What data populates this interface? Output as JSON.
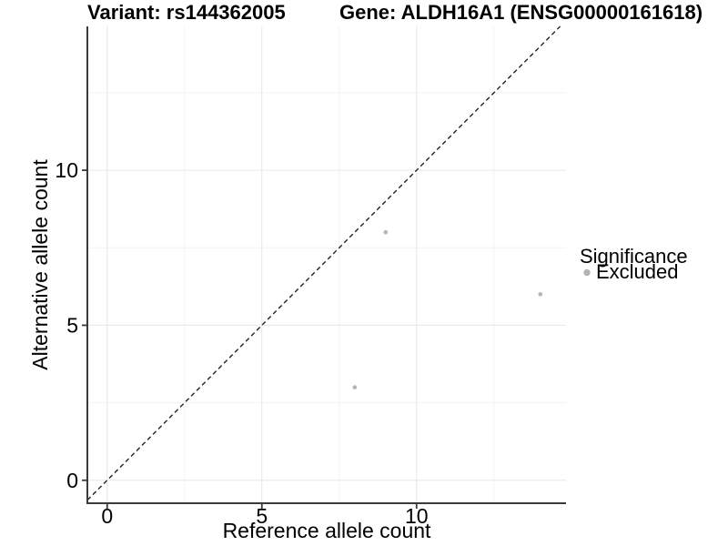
{
  "chart_data": {
    "type": "scatter",
    "title_left": "Variant: rs144362005",
    "title_right": "Gene: ALDH16A1 (ENSG00000161618)",
    "xlabel": "Reference allele count",
    "ylabel": "Alternative allele count",
    "points": [
      {
        "x": 9,
        "y": 8,
        "significance": "Excluded"
      },
      {
        "x": 14,
        "y": 6,
        "significance": "Excluded"
      },
      {
        "x": 8,
        "y": 3,
        "significance": "Excluded"
      }
    ],
    "x_ticks": [
      0,
      5,
      10
    ],
    "y_ticks": [
      0,
      5,
      10
    ],
    "x_minor_gridlines": [
      2.5,
      7.5,
      12.5
    ],
    "y_minor_gridlines": [
      2.5,
      7.5,
      12.5
    ],
    "xlim": [
      -0.64,
      14.83
    ],
    "ylim": [
      -0.74,
      14.64
    ],
    "identity_line": {
      "slope": 1,
      "intercept": 0,
      "style": "dashed"
    },
    "grid": true,
    "legend": {
      "position": "right",
      "title": "Significance",
      "items": [
        {
          "label": "Excluded",
          "color": "#b4b4b4"
        }
      ]
    },
    "colors": {
      "point": "#b4b4b4",
      "identity_line": "#222222",
      "grid_major": "#e6e6e6",
      "grid_minor": "#f2f2f2",
      "axis": "#3a3a3a",
      "background": "#ffffff"
    }
  }
}
